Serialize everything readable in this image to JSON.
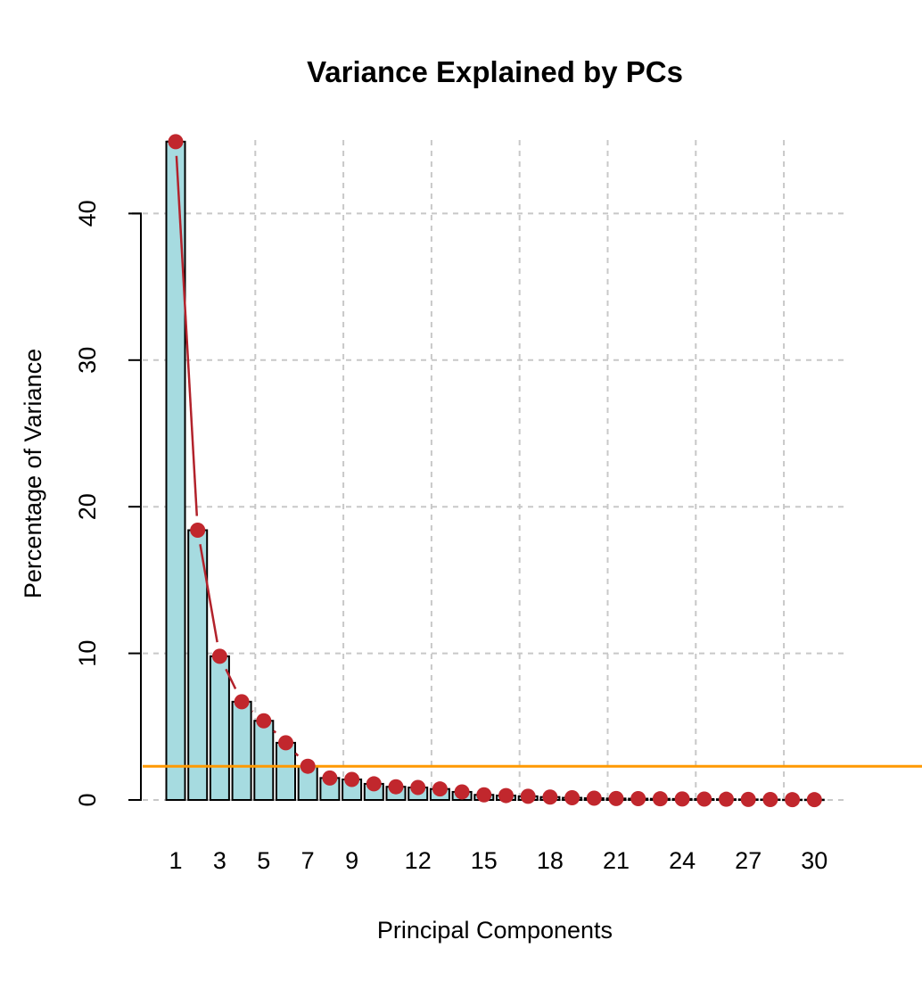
{
  "chart_data": {
    "type": "bar",
    "title": "Variance Explained by PCs",
    "xlabel": "Principal Components",
    "ylabel": "Percentage of Variance",
    "categories": [
      1,
      2,
      3,
      4,
      5,
      6,
      7,
      8,
      9,
      10,
      11,
      12,
      13,
      14,
      15,
      16,
      17,
      18,
      19,
      20,
      21,
      22,
      23,
      24,
      25,
      26,
      27,
      28,
      29,
      30
    ],
    "values": [
      44.9,
      18.4,
      9.8,
      6.7,
      5.4,
      3.9,
      2.3,
      1.5,
      1.4,
      1.1,
      0.9,
      0.85,
      0.75,
      0.55,
      0.35,
      0.3,
      0.25,
      0.2,
      0.15,
      0.12,
      0.1,
      0.09,
      0.08,
      0.07,
      0.06,
      0.05,
      0.04,
      0.03,
      0.02,
      0.02
    ],
    "x_tick_labels": [
      "1",
      "3",
      "5",
      "7",
      "9",
      "12",
      "15",
      "18",
      "21",
      "24",
      "27",
      "30"
    ],
    "y_ticks": [
      0,
      10,
      20,
      30,
      40
    ],
    "ylim": [
      0,
      45
    ],
    "reference_line": 2.3,
    "grid": true,
    "colors": {
      "bar_fill": "#a6dbe0",
      "bar_stroke": "#000000",
      "points": "#c1272d",
      "trend_line": "#b2222b",
      "reference_line": "#ff9900",
      "grid": "#c8c8c8"
    }
  }
}
